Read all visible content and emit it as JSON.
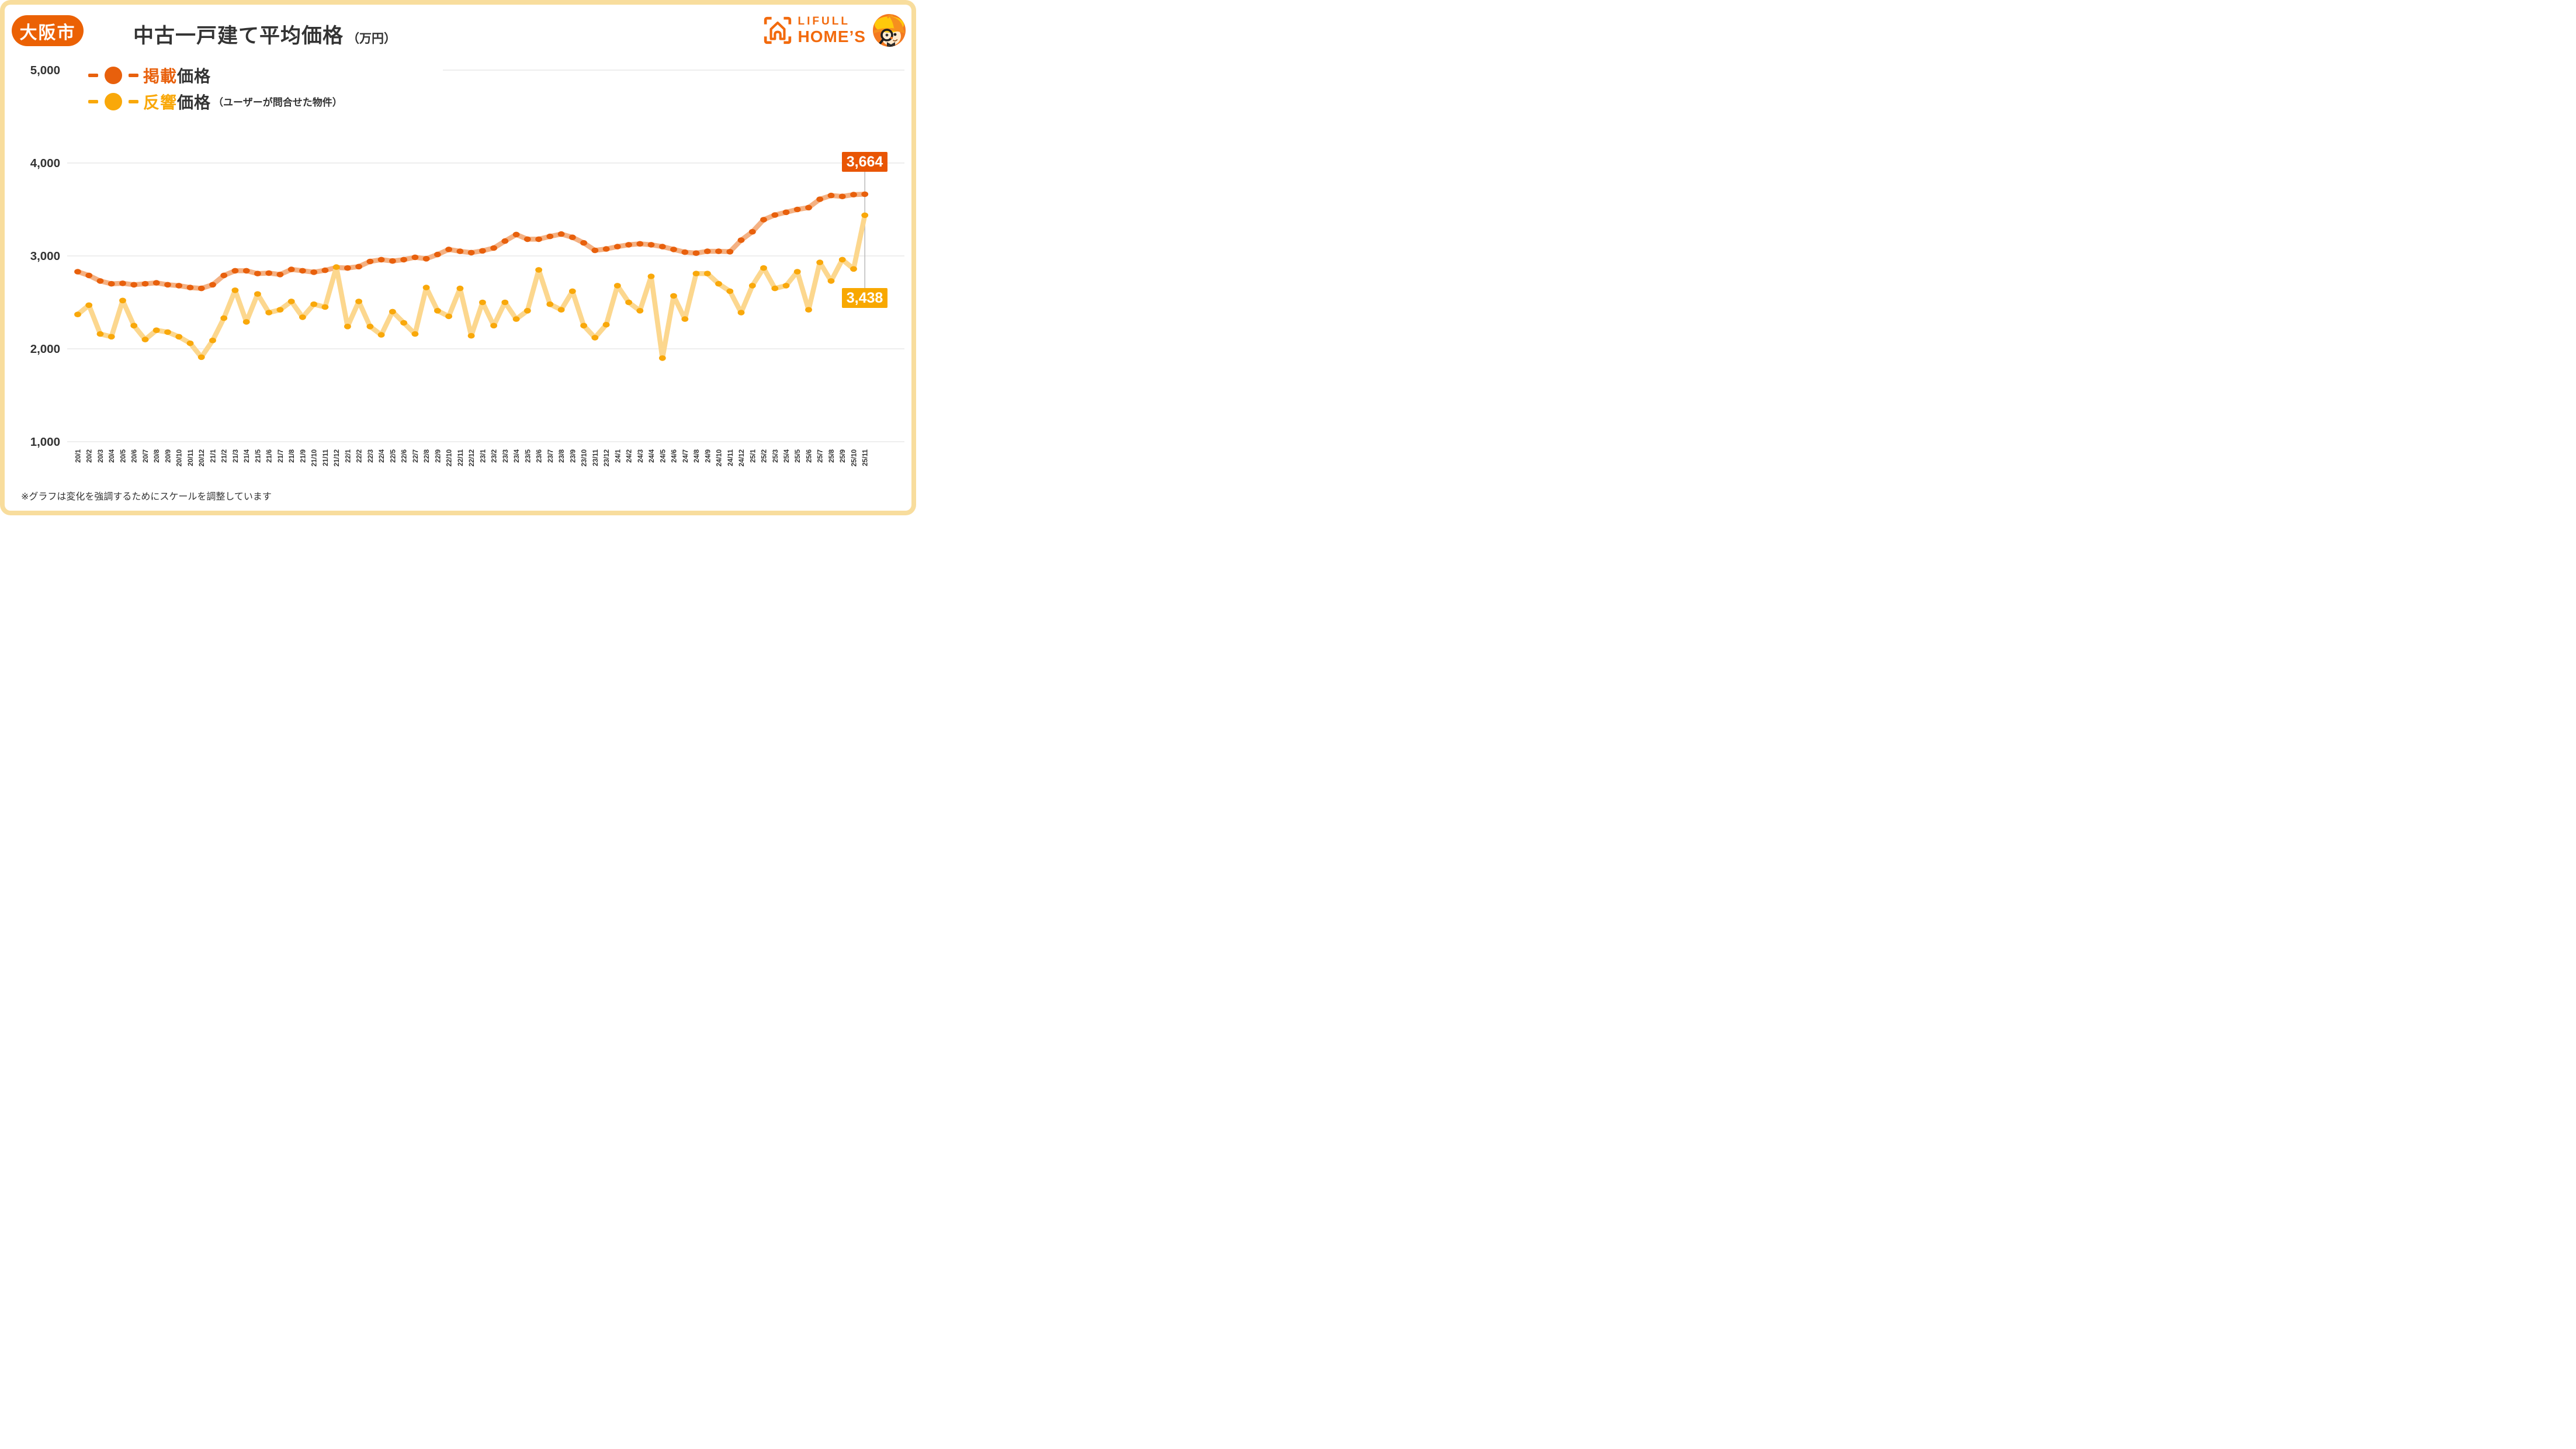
{
  "badge": {
    "label": "大阪市"
  },
  "title": {
    "main": "中古一戸建て平均価格",
    "unit": "（万円）"
  },
  "logo": {
    "line1": "LIFULL",
    "line2": "HOME’S"
  },
  "legend": [
    {
      "colored": "掲載",
      "rest": "価格",
      "note": "",
      "color": "#E8600C",
      "line_color": "#F4B183"
    },
    {
      "colored": "反響",
      "rest": "価格",
      "note": "（ユーザーが問合せた物件）",
      "color": "#F9A80A",
      "line_color": "#FCD78E"
    }
  ],
  "footnote": "※グラフは変化を強調するためにスケールを調整しています",
  "colors": {
    "badge_orange": "#EB6104",
    "point_orange": "#E8600C",
    "line_orange": "#F4B183",
    "point_yellow": "#F9A80A",
    "line_yellow": "#FCD78E",
    "label_box_orange": "#E95504",
    "label_box_yellow": "#F8A800",
    "border_cream": "#F8DD9D",
    "gridline": "#E3E3E3",
    "connector_gray": "#BDBDBD",
    "text_dark": "#333333",
    "logo_orange": "#F26A0D"
  },
  "chart_data": {
    "type": "line",
    "title": "中古一戸建て平均価格（万円） 大阪市",
    "xlabel": "",
    "ylabel": "万円",
    "ylim": [
      1000,
      5000
    ],
    "grid": true,
    "legend_position": "top-left",
    "yticks": [
      {
        "v": 5000,
        "label": "5,000"
      },
      {
        "v": 4000,
        "label": "4,000"
      },
      {
        "v": 3000,
        "label": "3,000"
      },
      {
        "v": 2000,
        "label": "2,000"
      },
      {
        "v": 1000,
        "label": "1,000"
      }
    ],
    "categories": [
      "20/1",
      "20/2",
      "20/3",
      "20/4",
      "20/5",
      "20/6",
      "20/7",
      "20/8",
      "20/9",
      "20/10",
      "20/11",
      "20/12",
      "21/1",
      "21/2",
      "21/3",
      "21/4",
      "21/5",
      "21/6",
      "21/7",
      "21/8",
      "21/9",
      "21/10",
      "21/11",
      "21/12",
      "22/1",
      "22/2",
      "22/3",
      "22/4",
      "22/5",
      "22/6",
      "22/7",
      "22/8",
      "22/9",
      "22/10",
      "22/11",
      "22/12",
      "23/1",
      "23/2",
      "23/3",
      "23/4",
      "23/5",
      "23/6",
      "23/7",
      "23/8",
      "23/9",
      "23/10",
      "23/11",
      "23/12",
      "24/1",
      "24/2",
      "24/3",
      "24/4",
      "24/5",
      "24/6",
      "24/7",
      "24/8",
      "24/9",
      "24/10",
      "24/11",
      "24/12",
      "25/1",
      "25/2",
      "25/3",
      "25/4",
      "25/5",
      "25/6",
      "25/7",
      "25/8",
      "25/9",
      "25/10",
      "25/11"
    ],
    "series": [
      {
        "name": "掲載価格",
        "values": [
          2830,
          2790,
          2730,
          2700,
          2705,
          2690,
          2700,
          2710,
          2690,
          2680,
          2660,
          2650,
          2690,
          2790,
          2840,
          2840,
          2810,
          2815,
          2800,
          2855,
          2840,
          2825,
          2845,
          2875,
          2870,
          2885,
          2940,
          2960,
          2945,
          2960,
          2985,
          2970,
          3015,
          3070,
          3050,
          3035,
          3055,
          3085,
          3160,
          3230,
          3180,
          3180,
          3210,
          3235,
          3200,
          3140,
          3060,
          3075,
          3100,
          3120,
          3130,
          3120,
          3100,
          3070,
          3040,
          3030,
          3050,
          3050,
          3045,
          3170,
          3260,
          3390,
          3440,
          3470,
          3500,
          3520,
          3610,
          3650,
          3640,
          3660,
          3664
        ]
      },
      {
        "name": "反響価格（ユーザーが問合せた物件）",
        "values": [
          2370,
          2470,
          2160,
          2130,
          2520,
          2250,
          2100,
          2200,
          2180,
          2130,
          2060,
          1910,
          2090,
          2330,
          2630,
          2290,
          2590,
          2390,
          2420,
          2510,
          2340,
          2480,
          2450,
          2880,
          2240,
          2510,
          2240,
          2150,
          2400,
          2280,
          2160,
          2660,
          2410,
          2350,
          2650,
          2140,
          2500,
          2250,
          2500,
          2320,
          2410,
          2850,
          2480,
          2420,
          2620,
          2250,
          2120,
          2260,
          2680,
          2500,
          2410,
          2780,
          1900,
          2570,
          2320,
          2810,
          2810,
          2700,
          2620,
          2390,
          2680,
          2870,
          2650,
          2680,
          2830,
          2420,
          2930,
          2730,
          2960,
          2860,
          3438
        ]
      }
    ],
    "end_labels": {
      "listed": "3,664",
      "response": "3,438"
    }
  }
}
